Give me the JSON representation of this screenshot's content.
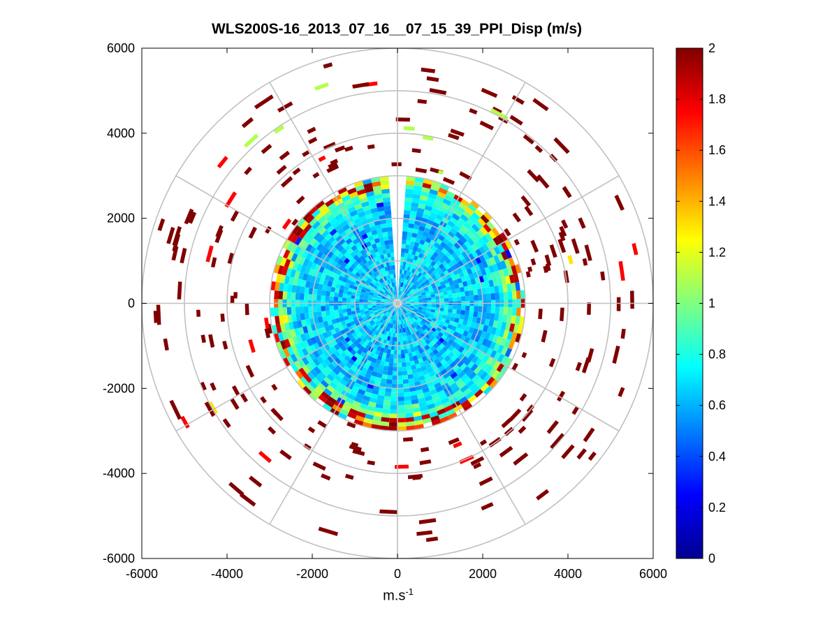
{
  "chart_data": {
    "type": "heatmap",
    "title": "WLS200S-16_2013_07_16__07_15_39_PPI_Disp (m/s)",
    "xlabel_base": "m.s",
    "xlabel_sup": "-1",
    "ylabel": "",
    "xlim": [
      -6000,
      6000
    ],
    "ylim": [
      -6000,
      6000
    ],
    "x_ticks": [
      -6000,
      -4000,
      -2000,
      0,
      2000,
      4000,
      6000
    ],
    "y_ticks": [
      6000,
      4000,
      2000,
      0,
      -2000,
      -4000,
      -6000
    ],
    "x_tick_labels": [
      "-6000",
      "-4000",
      "-2000",
      "0",
      "2000",
      "4000",
      "6000"
    ],
    "y_tick_labels": [
      "6000",
      "4000",
      "2000",
      "0",
      "-2000",
      "-4000",
      "-6000"
    ],
    "polar_grid": {
      "range_rings": [
        1000,
        2000,
        3000,
        4000,
        5000,
        6000
      ],
      "spoke_angles_deg": [
        0,
        30,
        60,
        90,
        120,
        150,
        180,
        210,
        240,
        270,
        300,
        330
      ]
    },
    "colorbar": {
      "min": 0,
      "max": 2,
      "ticks": [
        2,
        1.8,
        1.6,
        1.4,
        1.2,
        1,
        0.8,
        0.6,
        0.4,
        0.2,
        0
      ],
      "tick_labels": [
        "2",
        "1.8",
        "1.6",
        "1.4",
        "1.2",
        "1",
        "0.8",
        "0.6",
        "0.4",
        "0.2",
        "0"
      ],
      "colormap": "jet"
    },
    "field_description": {
      "inner_radius_m": 0,
      "dense_radius_m": 3000,
      "sparse_max_radius_m": 5800,
      "gap_azimuth_deg": [
        -4,
        4
      ],
      "inner_typical_value": 0.65,
      "edge_typical_value": 2.0,
      "sparse_value": 2.0
    }
  }
}
